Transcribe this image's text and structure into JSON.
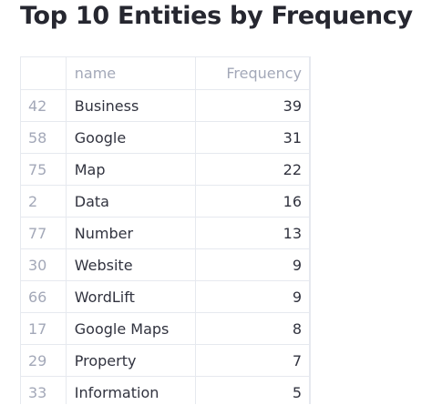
{
  "title": "Top 10 Entities by Frequency",
  "table": {
    "columns": [
      "",
      "name",
      "Frequency"
    ],
    "rows": [
      {
        "index": "42",
        "name": "Business",
        "frequency": "39"
      },
      {
        "index": "58",
        "name": "Google",
        "frequency": "31"
      },
      {
        "index": "75",
        "name": "Map",
        "frequency": "22"
      },
      {
        "index": "2",
        "name": "Data",
        "frequency": "16"
      },
      {
        "index": "77",
        "name": "Number",
        "frequency": "13"
      },
      {
        "index": "30",
        "name": "Website",
        "frequency": "9"
      },
      {
        "index": "66",
        "name": "WordLift",
        "frequency": "9"
      },
      {
        "index": "17",
        "name": "Google Maps",
        "frequency": "8"
      },
      {
        "index": "29",
        "name": "Property",
        "frequency": "7"
      },
      {
        "index": "33",
        "name": "Information",
        "frequency": "5"
      }
    ]
  }
}
